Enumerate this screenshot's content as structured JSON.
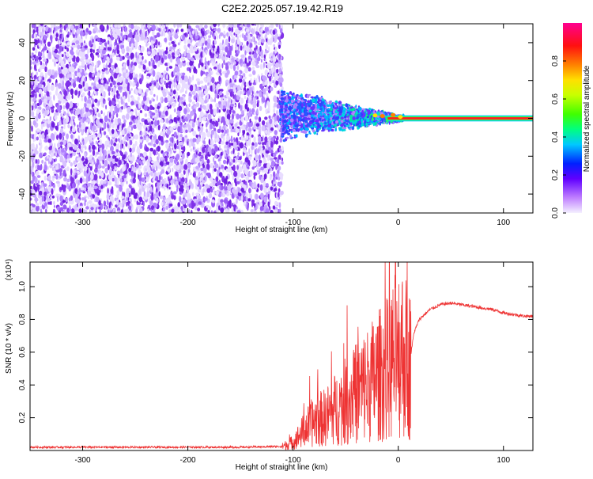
{
  "title": "C2E2.2025.057.19.42.R19",
  "chart_data": [
    {
      "type": "heatmap",
      "xlabel": "Height of straight line (km)",
      "ylabel": "Frequency (Hz)",
      "xlim": [
        -350,
        128
      ],
      "ylim": [
        -50,
        50
      ],
      "xticks": [
        -300,
        -200,
        -100,
        0,
        100
      ],
      "yticks": [
        -40,
        -20,
        0,
        20,
        40
      ],
      "colorbar": {
        "label": "Normalized spectral amplitude",
        "range": [
          0,
          1
        ],
        "ticks": [
          "0.0",
          "0.2",
          "0.4",
          "0.6",
          "0.8"
        ]
      },
      "regions": [
        {
          "x_range": [
            -350,
            -110
          ],
          "freq_range": [
            -50,
            50
          ],
          "amplitude": "low (0.0-0.2), scattered"
        },
        {
          "x_range": [
            -110,
            0
          ],
          "freq_range": [
            -12,
            15
          ],
          "amplitude": "0.2-0.4, narrowing toward 0 km"
        },
        {
          "x_range": [
            0,
            128
          ],
          "freq_range": [
            -1,
            1
          ],
          "amplitude": "0.7-1.0, single tone at 0 Hz"
        }
      ]
    },
    {
      "type": "line",
      "xlabel": "Height of straight line (km)",
      "ylabel": "SNR (10 * v/v)",
      "yunit": "(x10^4)",
      "xlim": [
        -350,
        128
      ],
      "ylim": [
        0,
        1.15
      ],
      "xticks": [
        -300,
        -200,
        -100,
        0,
        100
      ],
      "yticks": [
        0.2,
        0.4,
        0.6,
        0.8,
        1.0
      ],
      "series": [
        {
          "x": [
            -350,
            -300,
            -250,
            -200,
            -150,
            -110,
            -100,
            -90,
            -80,
            -70,
            -60,
            -50,
            -40,
            -30,
            -20,
            -10,
            -5,
            0,
            5,
            10,
            15,
            20,
            30,
            40,
            50,
            60,
            70,
            80,
            90,
            100,
            110,
            120,
            128
          ],
          "values": [
            0.02,
            0.02,
            0.02,
            0.02,
            0.02,
            0.025,
            0.05,
            0.12,
            0.18,
            0.2,
            0.25,
            0.3,
            0.35,
            0.4,
            0.45,
            0.5,
            0.55,
            0.62,
            0.6,
            0.5,
            0.72,
            0.8,
            0.86,
            0.89,
            0.9,
            0.89,
            0.88,
            0.87,
            0.86,
            0.84,
            0.83,
            0.82,
            0.82
          ],
          "color": "#ee3333"
        }
      ]
    }
  ]
}
